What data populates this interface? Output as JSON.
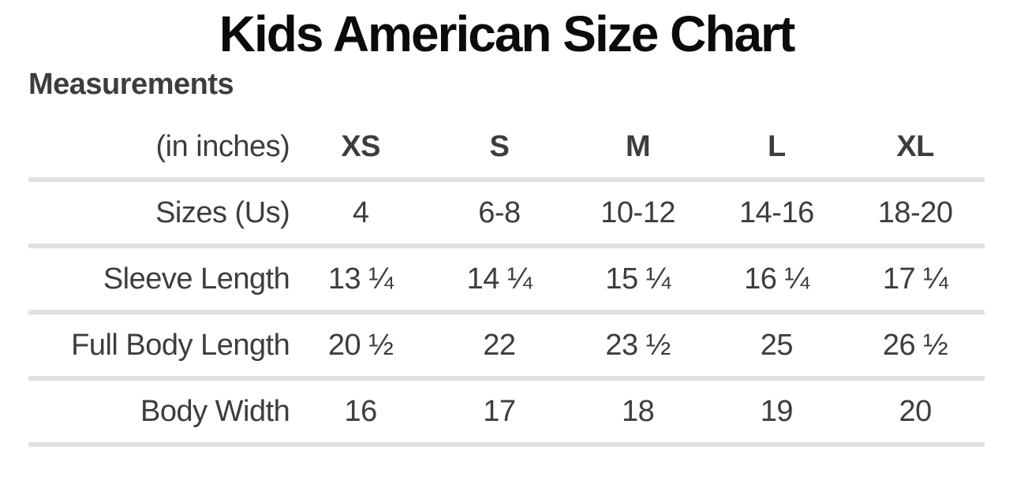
{
  "page": {
    "title": "Kids American Size Chart",
    "section_heading": "Measurements"
  },
  "table": {
    "corner_label": "(in inches)",
    "columns": [
      "XS",
      "S",
      "M",
      "L",
      "XL"
    ],
    "rows": [
      {
        "label": "Sizes (Us)",
        "values": [
          "4",
          "6-8",
          "10-12",
          "14-16",
          "18-20"
        ]
      },
      {
        "label": "Sleeve Length",
        "values": [
          "13 ¼",
          "14 ¼",
          "15 ¼",
          "16 ¼",
          "17 ¼"
        ]
      },
      {
        "label": "Full Body Length",
        "values": [
          "20 ½",
          "22",
          "23 ½",
          "25",
          "26 ½"
        ]
      },
      {
        "label": "Body Width",
        "values": [
          "16",
          "17",
          "18",
          "19",
          "20"
        ]
      }
    ]
  },
  "chart_data": {
    "type": "table",
    "title": "Kids American Size Chart",
    "subtitle": "Measurements",
    "unit_note": "(in inches)",
    "columns": [
      "(in inches)",
      "XS",
      "S",
      "M",
      "L",
      "XL"
    ],
    "rows": [
      [
        "Sizes (Us)",
        "4",
        "6-8",
        "10-12",
        "14-16",
        "18-20"
      ],
      [
        "Sleeve Length",
        "13 ¼",
        "14 ¼",
        "15 ¼",
        "16 ¼",
        "17 ¼"
      ],
      [
        "Full Body Length",
        "20 ½",
        "22",
        "23 ½",
        "25",
        "26 ½"
      ],
      [
        "Body Width",
        "16",
        "17",
        "18",
        "19",
        "20"
      ]
    ]
  },
  "colors": {
    "title_text": "#0b0b0b",
    "body_text": "#3d3d3d",
    "divider": "#e1e1e5",
    "background": "#ffffff"
  }
}
